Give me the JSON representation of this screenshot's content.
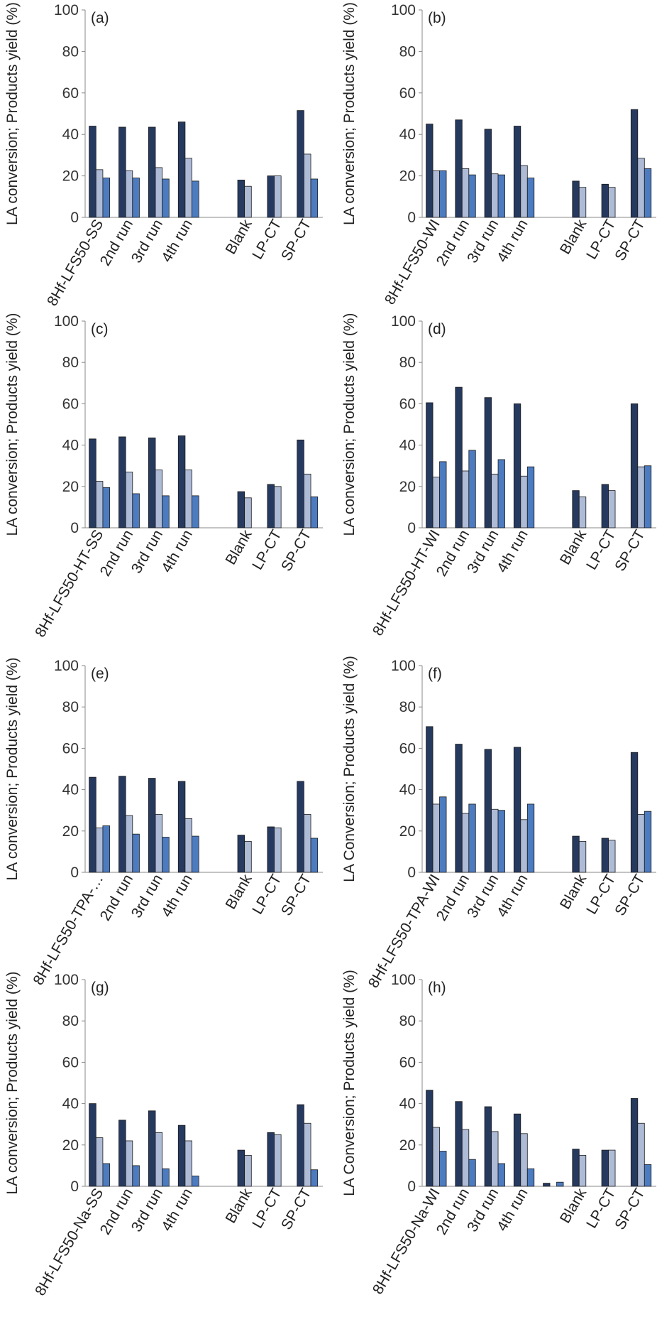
{
  "series_colors": [
    "#26395E",
    "#AEBBD6",
    "#4C7BC0"
  ],
  "bar_stroke": "#1a1a1a",
  "chart_data": [
    {
      "type": "bar",
      "panel_label": "(a)",
      "ylabel": "LA conversion; Products yield (%)",
      "ylim": [
        0,
        100
      ],
      "yticks": [
        0,
        20,
        40,
        60,
        80,
        100
      ],
      "categories": [
        "8Hf-LFS50-SS",
        "2nd run",
        "3rd run",
        "4th run",
        "",
        "Blank",
        "LP-CT",
        "SP-CT"
      ],
      "series": [
        {
          "values": [
            44,
            43.5,
            43.5,
            46,
            0,
            18,
            20,
            51.5
          ]
        },
        {
          "values": [
            23,
            22.5,
            24,
            28.5,
            0,
            15,
            20,
            30.5
          ]
        },
        {
          "values": [
            19,
            19,
            18.5,
            17.5,
            0,
            0,
            0,
            18.5
          ]
        }
      ]
    },
    {
      "type": "bar",
      "panel_label": "(b)",
      "ylabel": "LA conversion; Products yield (%)",
      "ylim": [
        0,
        100
      ],
      "yticks": [
        0,
        20,
        40,
        60,
        80,
        100
      ],
      "categories": [
        "8Hf-LFS50-WI",
        "2nd run",
        "3rd run",
        "4th run",
        "",
        "Blank",
        "LP-CT",
        "SP-CT"
      ],
      "series": [
        {
          "values": [
            45,
            47,
            42.5,
            44,
            0,
            17.5,
            16,
            52
          ]
        },
        {
          "values": [
            22.5,
            23.5,
            21,
            25,
            0,
            14.5,
            14.5,
            28.5
          ]
        },
        {
          "values": [
            22.5,
            20.5,
            20.5,
            19,
            0,
            0,
            0,
            23.5
          ]
        }
      ]
    },
    {
      "type": "bar",
      "panel_label": "(c)",
      "ylabel": "LA conversion; Products yield (%)",
      "ylim": [
        0,
        100
      ],
      "yticks": [
        0,
        20,
        40,
        60,
        80,
        100
      ],
      "categories": [
        "8Hf-LFS50-HT-SS",
        "2nd run",
        "3rd run",
        "4th run",
        "",
        "Blank",
        "LP-CT",
        "SP-CT"
      ],
      "series": [
        {
          "values": [
            43,
            44,
            43.5,
            44.5,
            0,
            17.5,
            21,
            42.5
          ]
        },
        {
          "values": [
            22.5,
            27,
            28,
            28,
            0,
            14.5,
            20,
            26
          ]
        },
        {
          "values": [
            19.5,
            16.5,
            15.5,
            15.5,
            0,
            0,
            0,
            15
          ]
        }
      ]
    },
    {
      "type": "bar",
      "panel_label": "(d)",
      "ylabel": "LA conversion; Products yield (%)",
      "ylim": [
        0,
        100
      ],
      "yticks": [
        0,
        20,
        40,
        60,
        80,
        100
      ],
      "categories": [
        "8Hf-LFS50-HT-WI",
        "2nd run",
        "3rd run",
        "4th run",
        "",
        "Blank",
        "LP-CT",
        "SP-CT"
      ],
      "series": [
        {
          "values": [
            60.5,
            68,
            63,
            60,
            0,
            18,
            21,
            60
          ]
        },
        {
          "values": [
            24.5,
            27.5,
            26,
            25,
            0,
            15,
            18,
            29.5
          ]
        },
        {
          "values": [
            32,
            37.5,
            33,
            29.5,
            0,
            0,
            0,
            30
          ]
        }
      ]
    },
    {
      "type": "bar",
      "panel_label": "(e)",
      "ylabel": "LA conversion; Products yield (%)",
      "ylim": [
        0,
        100
      ],
      "yticks": [
        0,
        20,
        40,
        60,
        80,
        100
      ],
      "categories": [
        "8Hf-LFS50-TPA-…",
        "2nd run",
        "3rd run",
        "4th run",
        "",
        "Blank",
        "LP-CT",
        "SP-CT"
      ],
      "series": [
        {
          "values": [
            46,
            46.5,
            45.5,
            44,
            0,
            18,
            22,
            44
          ]
        },
        {
          "values": [
            21.5,
            27.5,
            28,
            26,
            0,
            15,
            21.5,
            28
          ]
        },
        {
          "values": [
            22.5,
            18.5,
            17,
            17.5,
            0,
            0,
            0,
            16.5
          ]
        }
      ]
    },
    {
      "type": "bar",
      "panel_label": "(f)",
      "ylabel": "LA Conversion; Products yield (%)",
      "ylim": [
        0,
        100
      ],
      "yticks": [
        0,
        20,
        40,
        60,
        80,
        100
      ],
      "categories": [
        "8Hf-LFS50-TPA-WI",
        "2nd run",
        "3rd run",
        "4th run",
        "",
        "Blank",
        "LP-CT",
        "SP-CT"
      ],
      "series": [
        {
          "values": [
            70.5,
            62,
            59.5,
            60.5,
            0,
            17.5,
            16.5,
            58
          ]
        },
        {
          "values": [
            33,
            28.5,
            30.5,
            25.5,
            0,
            15,
            15.5,
            28
          ]
        },
        {
          "values": [
            36.5,
            33,
            30,
            33,
            0,
            0,
            0,
            29.5
          ]
        }
      ]
    },
    {
      "type": "bar",
      "panel_label": "(g)",
      "ylabel": "LA conversion; Products yield (%)",
      "ylim": [
        0,
        100
      ],
      "yticks": [
        0,
        20,
        40,
        60,
        80,
        100
      ],
      "categories": [
        "8Hf-LFS50-Na-SS",
        "2nd run",
        "3rd run",
        "4th run",
        "",
        "Blank",
        "LP-CT",
        "SP-CT"
      ],
      "series": [
        {
          "values": [
            40,
            32,
            36.5,
            29.5,
            0,
            17.5,
            26,
            39.5
          ]
        },
        {
          "values": [
            23.5,
            22,
            26,
            22,
            0,
            15,
            25,
            30.5
          ]
        },
        {
          "values": [
            11,
            10,
            8.5,
            5,
            0,
            0,
            0,
            8
          ]
        }
      ]
    },
    {
      "type": "bar",
      "panel_label": "(h)",
      "ylabel": "LA Conversion; Products yield (%)",
      "ylim": [
        0,
        100
      ],
      "yticks": [
        0,
        20,
        40,
        60,
        80,
        100
      ],
      "categories": [
        "8Hf-LFS50-Na-WI",
        "2nd run",
        "3rd run",
        "4th run",
        "",
        "Blank",
        "LP-CT",
        "SP-CT"
      ],
      "series": [
        {
          "values": [
            46.5,
            41,
            38.5,
            35,
            1.5,
            18,
            17.5,
            42.5
          ]
        },
        {
          "values": [
            28.5,
            27.5,
            26.5,
            25.5,
            0,
            15,
            17.5,
            30.5
          ]
        },
        {
          "values": [
            17,
            13,
            11,
            8.5,
            2,
            0,
            0,
            10.5
          ]
        }
      ]
    }
  ]
}
